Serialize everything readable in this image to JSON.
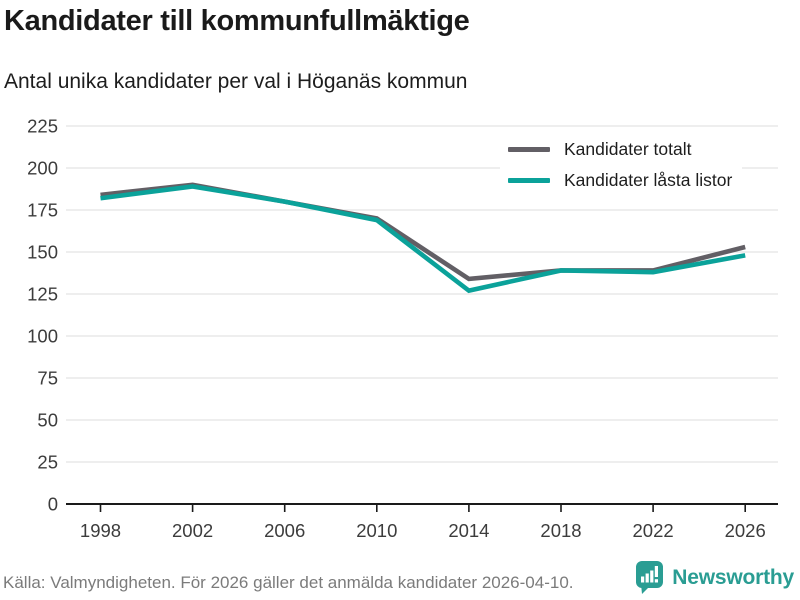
{
  "header": {
    "title": "Kandidater till kommunfullmäktige",
    "subtitle": "Antal unika kandidater per val i Höganäs kommun"
  },
  "colors": {
    "series_total": "#625f65",
    "series_locked": "#0ba29a",
    "grid": "#e4e4e4",
    "axis": "#1a1a1a",
    "tick_label": "#3c3c3c",
    "footer_text": "#7b7b7b",
    "brand_teal": "#2a9d93"
  },
  "chart_data": {
    "type": "line",
    "title": "Kandidater till kommunfullmäktige",
    "subtitle": "Antal unika kandidater per val i Höganäs kommun",
    "x": [
      1998,
      2002,
      2006,
      2010,
      2014,
      2018,
      2022,
      2026
    ],
    "series": [
      {
        "name": "Kandidater totalt",
        "color": "#625f65",
        "values": [
          184,
          190,
          180,
          170,
          134,
          139,
          139,
          153
        ]
      },
      {
        "name": "Kandidater låsta listor",
        "color": "#0ba29a",
        "values": [
          182,
          189,
          180,
          169,
          127,
          139,
          138,
          148
        ]
      }
    ],
    "xlabel": "",
    "ylabel": "",
    "ylim": [
      0,
      225
    ],
    "ytick_step": 25,
    "grid": true,
    "legend_position": "top-right"
  },
  "legend": {
    "items": [
      {
        "label": "Kandidater totalt"
      },
      {
        "label": "Kandidater låsta listor"
      }
    ]
  },
  "footer": {
    "source": "Källa: Valmyndigheten. För 2026 gäller det anmälda kandidater 2026-04-10.",
    "brand": "Newsworthy"
  }
}
